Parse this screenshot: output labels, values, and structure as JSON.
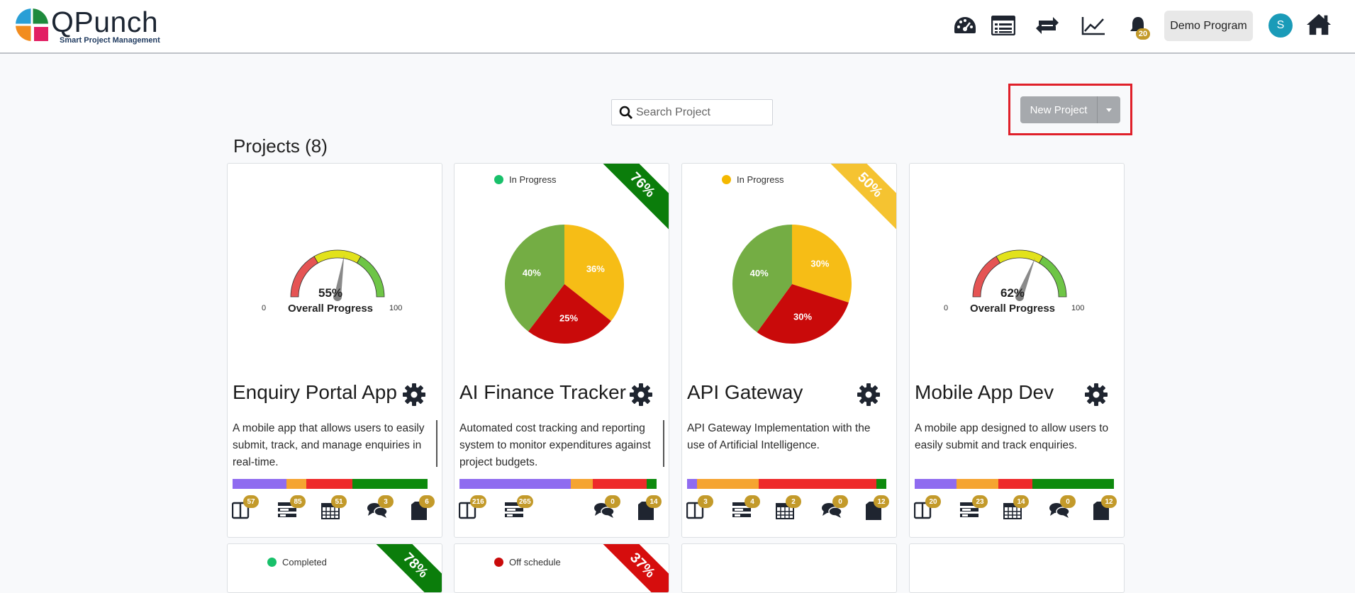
{
  "app": {
    "logo_text": "QPunch",
    "logo_tagline": "Smart Project Management",
    "notifications_count": "20",
    "program_label": "Demo Program",
    "avatar_initial": "S"
  },
  "nav_icons": [
    "dashboard-icon",
    "list-icon",
    "sync-icon",
    "chart-line-icon",
    "bell-icon",
    "home-icon"
  ],
  "search": {
    "placeholder": "Search Project"
  },
  "new_project_label": "New Project",
  "projects_title": "Projects (8)",
  "colors": {
    "red": "#ee2a2a",
    "orange": "#f5a431",
    "purple": "#8f6bf0",
    "green": "#0d8a0d",
    "pie_green": "#74ad44",
    "pie_yellow": "#f6bd16",
    "pie_red": "#c90a0a",
    "badge": "#c39a2a"
  },
  "projects": [
    {
      "name": "Enquiry Portal App",
      "visual": "gauge",
      "gauge": {
        "value": 55,
        "min_label": "0",
        "max_label": "100",
        "pct_label": "55%",
        "caption": "Overall Progress"
      },
      "description": "A mobile app that allows users to easily submit, track, and manage enquiries in real-time.",
      "bar": [
        {
          "color": "#8f6bf0",
          "pct": 27
        },
        {
          "color": "#f5a431",
          "pct": 10
        },
        {
          "color": "#ee2a2a",
          "pct": 23
        },
        {
          "color": "#0d8a0d",
          "pct": 38
        }
      ],
      "counts": {
        "requirements": "57",
        "tasks": "85",
        "milestones": "51",
        "discussions": "3",
        "documents": "6"
      }
    },
    {
      "name": "AI Finance Tracker",
      "visual": "pie",
      "status": "In Progress",
      "status_color": "#18c06a",
      "ribbon": "76%",
      "ribbon_color": "#0b7d0b",
      "pie": [
        {
          "label": "36%",
          "value": 36,
          "color": "#f6bd16"
        },
        {
          "label": "25%",
          "value": 25,
          "color": "#c90a0a"
        },
        {
          "label": "40%",
          "value": 40,
          "color": "#74ad44"
        }
      ],
      "description": "Automated cost tracking and reporting system to monitor expenditures against project budgets.",
      "bar": [
        {
          "color": "#8f6bf0",
          "pct": 56
        },
        {
          "color": "#f5a431",
          "pct": 11
        },
        {
          "color": "#ee2a2a",
          "pct": 27
        },
        {
          "color": "#0d8a0d",
          "pct": 5
        }
      ],
      "counts": {
        "requirements": "216",
        "tasks": "265",
        "discussions": "0",
        "documents": "14"
      }
    },
    {
      "name": "API Gateway",
      "visual": "pie",
      "status": "In Progress",
      "status_color": "#f4b800",
      "ribbon": "50%",
      "ribbon_color": "#f5c331",
      "pie": [
        {
          "label": "30%",
          "value": 30,
          "color": "#f6bd16"
        },
        {
          "label": "30%",
          "value": 30,
          "color": "#c90a0a"
        },
        {
          "label": "40%",
          "value": 40,
          "color": "#74ad44"
        }
      ],
      "description": "API Gateway Implementation with the use of Artificial Intelligence.",
      "bar": [
        {
          "color": "#8f6bf0",
          "pct": 5
        },
        {
          "color": "#f5a431",
          "pct": 31
        },
        {
          "color": "#ee2a2a",
          "pct": 59
        },
        {
          "color": "#0d8a0d",
          "pct": 5
        }
      ],
      "counts": {
        "requirements": "3",
        "tasks": "4",
        "milestones": "2",
        "discussions": "0",
        "documents": "12"
      }
    },
    {
      "name": "Mobile App Dev",
      "visual": "gauge",
      "gauge": {
        "value": 62,
        "min_label": "0",
        "max_label": "100",
        "pct_label": "62%",
        "caption": "Overall Progress"
      },
      "description": "A mobile app designed to allow users to easily submit and track enquiries.",
      "bar": [
        {
          "color": "#8f6bf0",
          "pct": 21
        },
        {
          "color": "#f5a431",
          "pct": 21
        },
        {
          "color": "#ee2a2a",
          "pct": 17
        },
        {
          "color": "#0d8a0d",
          "pct": 41
        }
      ],
      "counts": {
        "requirements": "20",
        "tasks": "23",
        "milestones": "14",
        "discussions": "0",
        "documents": "12"
      }
    }
  ],
  "partial_cards": [
    {
      "status": "Completed",
      "status_color": "#18c06a",
      "ribbon": "78%",
      "ribbon_color": "#0b7d0b"
    },
    {
      "status": "Off schedule",
      "status_color": "#c90a0a",
      "ribbon": "37%",
      "ribbon_color": "#d60d0d"
    },
    {},
    {}
  ]
}
